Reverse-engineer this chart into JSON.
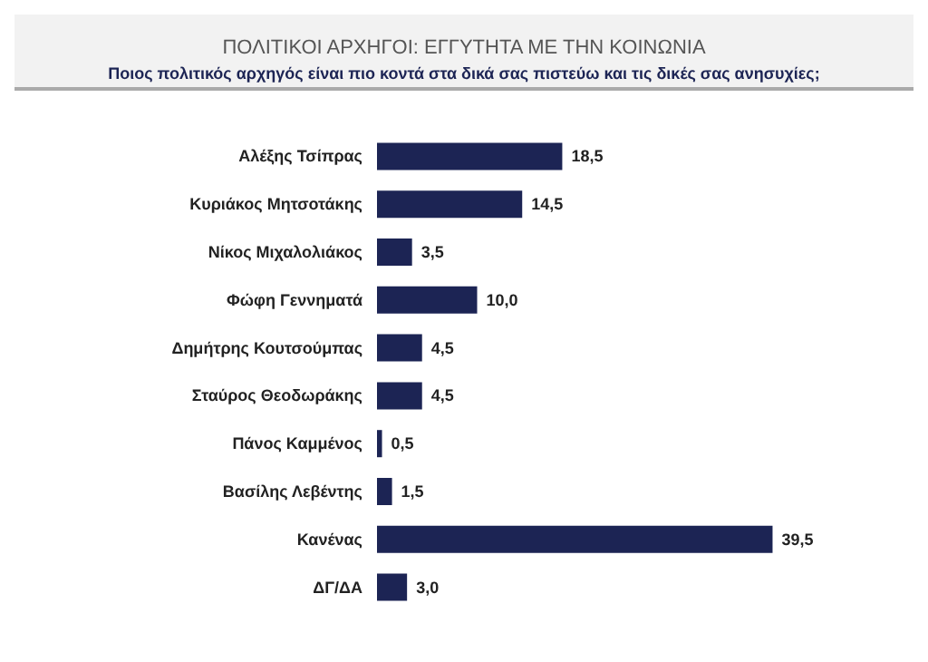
{
  "chart_data": {
    "type": "bar",
    "orientation": "horizontal",
    "title": "ΠΟΛΙΤΙΚΟΙ ΑΡΧΗΓΟΙ: ΕΓΓΥΤΗΤΑ ΜΕ ΤΗΝ ΚΟΙΝΩΝΙΑ",
    "subtitle": "Ποιος πολιτικός αρχηγός είναι πιο κοντά στα δικά σας πιστεύω και τις δικές σας ανησυχίες;",
    "categories": [
      "Αλέξης Τσίπρας",
      "Κυριάκος Μητσοτάκης",
      "Νίκος Μιχαλολιάκος",
      "Φώφη Γεννηματά",
      "Δημήτρης Κουτσούμπας",
      "Σταύρος Θεοδωράκης",
      "Πάνος Καμμένος",
      "Βασίλης Λεβέντης",
      "Κανένας",
      "ΔΓ/ΔΑ"
    ],
    "values": [
      18.5,
      14.5,
      3.5,
      10.0,
      4.5,
      4.5,
      0.5,
      1.5,
      39.5,
      3.0
    ],
    "value_labels": [
      "18,5",
      "14,5",
      "3,5",
      "10,0",
      "4,5",
      "4,5",
      "0,5",
      "1,5",
      "39,5",
      "3,0"
    ],
    "color": "#1c2454"
  }
}
